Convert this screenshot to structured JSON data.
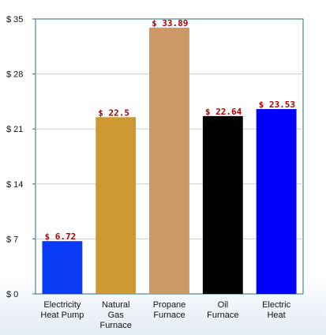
{
  "chart_data": {
    "type": "bar",
    "categories": [
      [
        "Electricity",
        "Heat Pump"
      ],
      [
        "Natural",
        "Gas",
        "Furnace"
      ],
      [
        "Propane",
        "Furnace"
      ],
      [
        "Oil",
        "Furnace"
      ],
      [
        "Electric",
        "Heat"
      ]
    ],
    "values": [
      6.72,
      22.5,
      33.89,
      22.64,
      23.53
    ],
    "data_labels": [
      "$ 6.72",
      "$ 22.5",
      "$ 33.89",
      "$ 22.64",
      "$ 23.53"
    ],
    "colors": [
      "#0b3cf5",
      "#cc9933",
      "#cc9966",
      "#000000",
      "#0000ff"
    ],
    "yticks": [
      0,
      7,
      14,
      21,
      28,
      35
    ],
    "ytick_labels": [
      "$ 0",
      "$ 7",
      "$ 14",
      "$ 21",
      "$ 28",
      "$ 35"
    ],
    "ylim": [
      0,
      35
    ],
    "grid": true,
    "title": "",
    "xlabel": "",
    "ylabel": ""
  }
}
